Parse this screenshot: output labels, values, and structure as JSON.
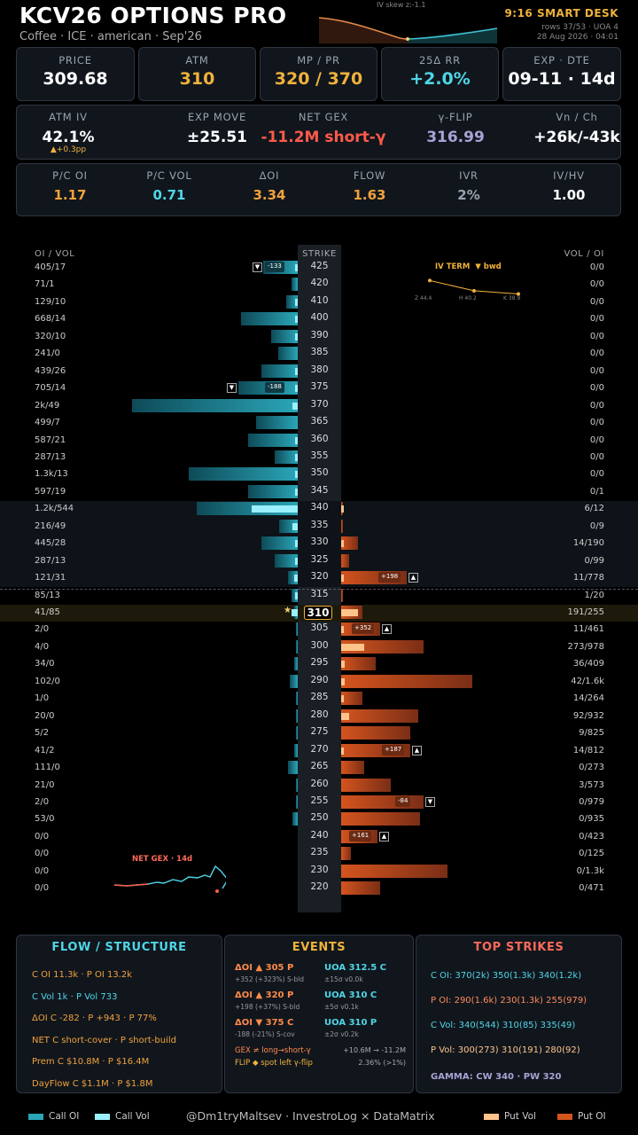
{
  "header": {
    "title": "KCV26 OPTIONS PRO",
    "subtitle": "Coffee · ICE · american · Sep'26",
    "skew_label": "IV skew   z:-1.1",
    "desk": "9:16 SMART DESK",
    "rows": "rows 37/53 · UOA 4",
    "datetime": "28 Aug 2026 · 04:01"
  },
  "top_cards": [
    {
      "k": "PRICE",
      "v": "309.68",
      "color": "#ffffff"
    },
    {
      "k": "ATM",
      "v": "310",
      "color": "#f0b23c"
    },
    {
      "k": "MP / PR",
      "v": "320 / 370",
      "color": "#f0b23c"
    },
    {
      "k": "25Δ RR",
      "v": "+2.0%",
      "color": "#4fd6e6"
    },
    {
      "k": "EXP · DTE",
      "v": "09-11 · 14d",
      "color": "#ffffff"
    }
  ],
  "row2": [
    {
      "k": "ATM IV",
      "v": "42.1%",
      "s": "▲+0.3pp",
      "color": "#ffffff"
    },
    {
      "k": "EXP MOVE",
      "v": "±25.51",
      "color": "#ffffff"
    },
    {
      "k": "NET GEX",
      "v": "-11.2M short-γ",
      "color": "#ff5a4a"
    },
    {
      "k": "γ-FLIP",
      "v": "316.99",
      "color": "#a8a3d6"
    },
    {
      "k": "Vn / Ch",
      "v": "+26k/-43k",
      "color": "#ffffff"
    }
  ],
  "row3": [
    {
      "k": "P/C OI",
      "v": "1.17",
      "color": "#f0a23c"
    },
    {
      "k": "P/C VOL",
      "v": "0.71",
      "color": "#4fd6e6"
    },
    {
      "k": "ΔOI",
      "v": "3.34",
      "color": "#f0a23c"
    },
    {
      "k": "FLOW",
      "v": "1.63",
      "color": "#f0a23c"
    },
    {
      "k": "IVR",
      "v": "2%",
      "color": "#9aa3ad"
    },
    {
      "k": "IV/HV",
      "v": "1.00",
      "color": "#ffffff"
    }
  ],
  "ladder": {
    "left_header": "OI / VOL",
    "strike_header": "STRIKE",
    "right_header": "VOL / OI",
    "atm_strike": "310",
    "rows": [
      {
        "strike": "425",
        "left": "405/17",
        "right": "0/0",
        "c": 0.21,
        "cv": 0.01,
        "p": 0,
        "pv": 0
      },
      {
        "strike": "420",
        "left": "71/1",
        "right": "0/0",
        "c": 0.04,
        "cv": 0,
        "p": 0,
        "pv": 0
      },
      {
        "strike": "410",
        "left": "129/10",
        "right": "0/0",
        "c": 0.07,
        "cv": 0.01,
        "p": 0,
        "pv": 0
      },
      {
        "strike": "400",
        "left": "668/14",
        "right": "0/0",
        "c": 0.34,
        "cv": 0.01,
        "p": 0,
        "pv": 0
      },
      {
        "strike": "390",
        "left": "320/10",
        "right": "0/0",
        "c": 0.16,
        "cv": 0.01,
        "p": 0,
        "pv": 0
      },
      {
        "strike": "385",
        "left": "241/0",
        "right": "0/0",
        "c": 0.12,
        "cv": 0,
        "p": 0,
        "pv": 0
      },
      {
        "strike": "380",
        "left": "439/26",
        "right": "0/0",
        "c": 0.22,
        "cv": 0.01,
        "p": 0,
        "pv": 0
      },
      {
        "strike": "375",
        "left": "705/14",
        "right": "0/0",
        "c": 0.36,
        "cv": 0.01,
        "p": 0,
        "pv": 0
      },
      {
        "strike": "370",
        "left": "2k/49",
        "right": "0/0",
        "c": 1.0,
        "cv": 0.03,
        "p": 0,
        "pv": 0
      },
      {
        "strike": "365",
        "left": "499/7",
        "right": "0/0",
        "c": 0.25,
        "cv": 0,
        "p": 0,
        "pv": 0
      },
      {
        "strike": "360",
        "left": "587/21",
        "right": "0/0",
        "c": 0.3,
        "cv": 0.01,
        "p": 0,
        "pv": 0
      },
      {
        "strike": "355",
        "left": "287/13",
        "right": "0/0",
        "c": 0.14,
        "cv": 0.01,
        "p": 0,
        "pv": 0
      },
      {
        "strike": "350",
        "left": "1.3k/13",
        "right": "0/0",
        "c": 0.66,
        "cv": 0.01,
        "p": 0,
        "pv": 0
      },
      {
        "strike": "345",
        "left": "597/19",
        "right": "0/1",
        "c": 0.3,
        "cv": 0.01,
        "p": 0,
        "pv": 0
      },
      {
        "strike": "340",
        "left": "1.2k/544",
        "right": "6/12",
        "c": 0.61,
        "cv": 0.28,
        "p": 0.01,
        "pv": 0.01
      },
      {
        "strike": "335",
        "left": "216/49",
        "right": "0/9",
        "c": 0.11,
        "cv": 0.03,
        "p": 0.01,
        "pv": 0
      },
      {
        "strike": "330",
        "left": "445/28",
        "right": "14/190",
        "c": 0.22,
        "cv": 0.01,
        "p": 0.1,
        "pv": 0.01
      },
      {
        "strike": "325",
        "left": "287/13",
        "right": "0/99",
        "c": 0.14,
        "cv": 0.01,
        "p": 0.05,
        "pv": 0
      },
      {
        "strike": "320",
        "left": "121/31",
        "right": "11/778",
        "c": 0.06,
        "cv": 0.02,
        "p": 0.4,
        "pv": 0.01
      },
      {
        "strike": "315",
        "left": "85/13",
        "right": "1/20",
        "c": 0.04,
        "cv": 0.01,
        "p": 0.01,
        "pv": 0
      },
      {
        "strike": "310",
        "left": "41/85",
        "right": "191/255",
        "c": 0.02,
        "cv": 0.04,
        "p": 0.13,
        "pv": 0.1
      },
      {
        "strike": "305",
        "left": "2/0",
        "right": "11/461",
        "c": 0.01,
        "cv": 0,
        "p": 0.24,
        "pv": 0.01
      },
      {
        "strike": "300",
        "left": "4/0",
        "right": "273/978",
        "c": 0.01,
        "cv": 0,
        "p": 0.5,
        "pv": 0.14
      },
      {
        "strike": "295",
        "left": "34/0",
        "right": "36/409",
        "c": 0.02,
        "cv": 0,
        "p": 0.21,
        "pv": 0.02
      },
      {
        "strike": "290",
        "left": "102/0",
        "right": "42/1.6k",
        "c": 0.05,
        "cv": 0,
        "p": 0.8,
        "pv": 0.02
      },
      {
        "strike": "285",
        "left": "1/0",
        "right": "14/264",
        "c": 0.01,
        "cv": 0,
        "p": 0.13,
        "pv": 0.01
      },
      {
        "strike": "280",
        "left": "20/0",
        "right": "92/932",
        "c": 0.01,
        "cv": 0,
        "p": 0.47,
        "pv": 0.05
      },
      {
        "strike": "275",
        "left": "5/2",
        "right": "9/825",
        "c": 0.01,
        "cv": 0,
        "p": 0.42,
        "pv": 0
      },
      {
        "strike": "270",
        "left": "41/2",
        "right": "14/812",
        "c": 0.02,
        "cv": 0,
        "p": 0.42,
        "pv": 0.01
      },
      {
        "strike": "265",
        "left": "111/0",
        "right": "0/273",
        "c": 0.06,
        "cv": 0,
        "p": 0.14,
        "pv": 0
      },
      {
        "strike": "260",
        "left": "21/0",
        "right": "3/573",
        "c": 0.01,
        "cv": 0,
        "p": 0.3,
        "pv": 0
      },
      {
        "strike": "255",
        "left": "2/0",
        "right": "0/979",
        "c": 0.01,
        "cv": 0,
        "p": 0.5,
        "pv": 0
      },
      {
        "strike": "250",
        "left": "53/0",
        "right": "0/935",
        "c": 0.03,
        "cv": 0,
        "p": 0.48,
        "pv": 0
      },
      {
        "strike": "240",
        "left": "0/0",
        "right": "0/423",
        "c": 0,
        "cv": 0,
        "p": 0.22,
        "pv": 0
      },
      {
        "strike": "235",
        "left": "0/0",
        "right": "0/125",
        "c": 0,
        "cv": 0,
        "p": 0.06,
        "pv": 0
      },
      {
        "strike": "230",
        "left": "0/0",
        "right": "0/1.3k",
        "c": 0,
        "cv": 0,
        "p": 0.65,
        "pv": 0
      },
      {
        "strike": "220",
        "left": "0/0",
        "right": "0/471",
        "c": 0,
        "cv": 0,
        "p": 0.24,
        "pv": 0
      }
    ],
    "call_tags": [
      {
        "strike": "425",
        "text": "-133"
      },
      {
        "strike": "375",
        "text": "-188"
      }
    ],
    "put_tags": [
      {
        "strike": "320",
        "text": "+198"
      },
      {
        "strike": "305",
        "text": "+352"
      },
      {
        "strike": "270",
        "text": "+187"
      },
      {
        "strike": "255",
        "text": "-84"
      },
      {
        "strike": "240",
        "text": "+161"
      }
    ],
    "iv_term": {
      "label": "IV TERM",
      "trend": "▼ bwd",
      "points": [
        {
          "label": "Z",
          "v": 44.4
        },
        {
          "label": "H",
          "v": 40.2
        },
        {
          "label": "K",
          "v": 38.9
        }
      ]
    },
    "net_gex_label": "NET GEX · 14d"
  },
  "panels": {
    "flow": {
      "title": "FLOW / STRUCTURE",
      "lines": [
        "C OI 11.3k   ·  P OI 13.2k",
        "C Vol 1k   ·  P Vol 733",
        "ΔOI C -282   ·  P +943   ·  P 77%",
        "NET  C short-cover  ·  P short-build",
        "Prem  C $10.8M   ·   P $16.4M",
        "DayFlow  C $1.1M   ·   P $1.8M"
      ]
    },
    "events": {
      "title": "EVENTS",
      "items": [
        {
          "h": "ΔOI ▲ 305 P",
          "s": "+352 (+323%)  S-bld",
          "rh": "UOA 312.5 C",
          "rs": "±15σ v0.0k"
        },
        {
          "h": "ΔOI ▲ 320 P",
          "s": "+198 (+37%)  S-bld",
          "rh": "UOA 310 C",
          "rs": "±5σ v0.1k"
        },
        {
          "h": "ΔOI ▼ 375 C",
          "s": "-188 (-21%)  S-cov",
          "rh": "UOA 310 P",
          "rs": "±2σ v0.2k"
        }
      ],
      "gex": "GEX ≠ long→short-γ",
      "gex_r": "+10.6M → -11.2M",
      "flip": "FLIP ◆ spot left γ-flip",
      "flip_r": "2.36% (>1%)"
    },
    "top": {
      "title": "TOP STRIKES",
      "lines": [
        "C OI: 370(2k)  350(1.3k)  340(1.2k)",
        "P OI: 290(1.6k)  230(1.3k)  255(979)",
        "C Vol: 340(544)  310(85)  335(49)",
        "P Vol: 300(273)  310(191)  280(92)"
      ],
      "gamma": "GAMMA: CW 340 · PW 320"
    }
  },
  "legend": {
    "call_oi": "Call OI",
    "call_vol": "Call Vol",
    "credit": "@Dm1tryMaltsev  ·  InvestroLog × DataMatrix",
    "put_vol": "Put Vol",
    "put_oi": "Put OI"
  },
  "colors": {
    "call": "#2aa6b8",
    "call_vol": "#9af0ff",
    "put": "#d4541e",
    "put_vol": "#ffc48a",
    "accent": "#f0b23c"
  }
}
